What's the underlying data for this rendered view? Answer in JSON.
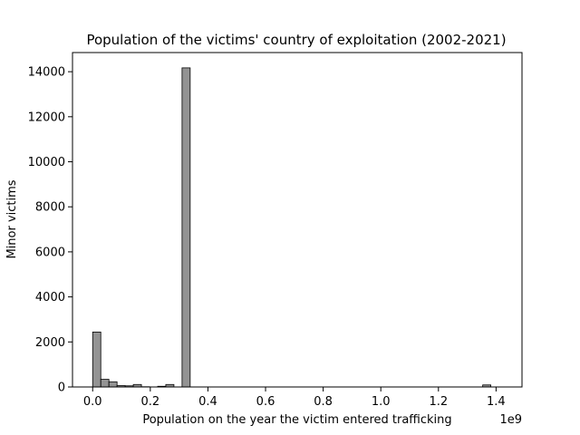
{
  "chart_data": {
    "type": "bar",
    "subtype": "histogram",
    "title": "Population of the victims' country of exploitation (2002-2021)",
    "xlabel": "Population on the year the victim entered trafficking",
    "ylabel": "Minor victims",
    "x_offset_text": "1e9",
    "xlim": [
      -0.07,
      1.49
    ],
    "ylim": [
      0,
      14850
    ],
    "xticks": [
      0.0,
      0.2,
      0.4,
      0.6,
      0.8,
      1.0,
      1.2,
      1.4
    ],
    "xtick_labels": [
      "0.0",
      "0.2",
      "0.4",
      "0.6",
      "0.8",
      "1.0",
      "1.2",
      "1.4"
    ],
    "yticks": [
      0,
      2000,
      4000,
      6000,
      8000,
      10000,
      12000,
      14000
    ],
    "ytick_labels": [
      "0",
      "2000",
      "4000",
      "6000",
      "8000",
      "10000",
      "12000",
      "14000"
    ],
    "bin_width": 0.0282,
    "bins": [
      {
        "x0": 0.0,
        "value": 2440
      },
      {
        "x0": 0.0282,
        "value": 340
      },
      {
        "x0": 0.0564,
        "value": 230
      },
      {
        "x0": 0.0846,
        "value": 60
      },
      {
        "x0": 0.1128,
        "value": 50
      },
      {
        "x0": 0.141,
        "value": 110
      },
      {
        "x0": 0.1692,
        "value": 10
      },
      {
        "x0": 0.1974,
        "value": 0
      },
      {
        "x0": 0.2256,
        "value": 30
      },
      {
        "x0": 0.2538,
        "value": 110
      },
      {
        "x0": 0.3102,
        "value": 14170
      },
      {
        "x0": 1.3536,
        "value": 90
      }
    ],
    "bar_color": "#808080",
    "edge_color": "#000000",
    "grid": false
  }
}
